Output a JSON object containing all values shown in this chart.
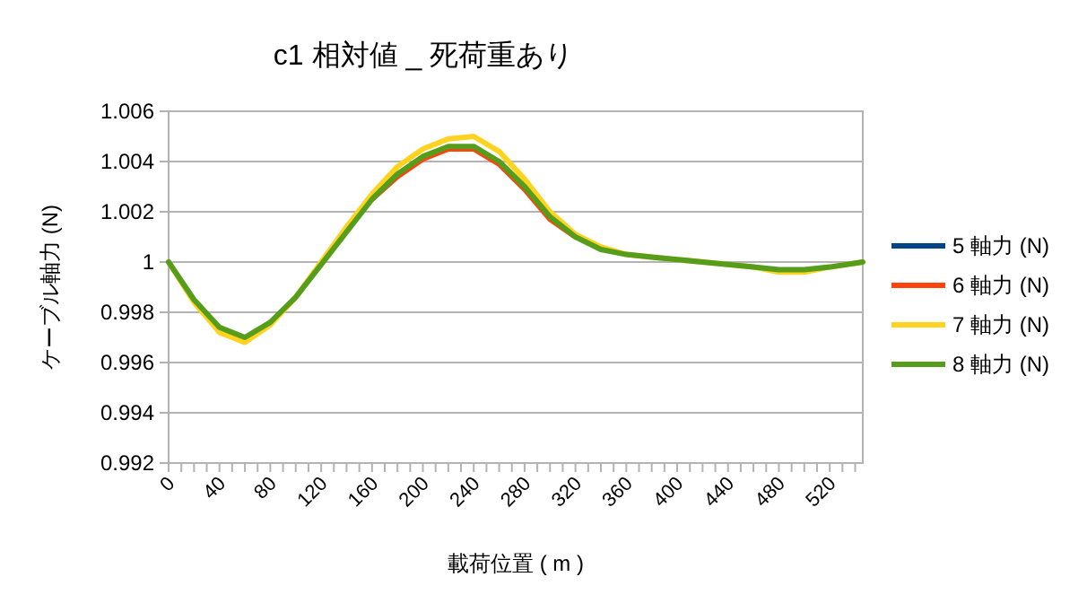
{
  "chart_data": {
    "type": "line",
    "title": "c1  相対値 _ 死荷重あり",
    "xlabel": "載荷位置 ( m )",
    "ylabel": "ケーブル軸力 (N)",
    "x": [
      0,
      20,
      40,
      60,
      80,
      100,
      120,
      140,
      160,
      180,
      200,
      220,
      240,
      260,
      280,
      300,
      320,
      340,
      360,
      380,
      400,
      420,
      440,
      460,
      480,
      500,
      520,
      546
    ],
    "series": [
      {
        "name": "5  軸力 (N)",
        "color": "#004586",
        "values": [
          null,
          null,
          null,
          null,
          null,
          null,
          null,
          null,
          null,
          null,
          null,
          null,
          null,
          null,
          null,
          null,
          null,
          null,
          null,
          null,
          null,
          null,
          null,
          null,
          null,
          null,
          null,
          null
        ]
      },
      {
        "name": "6  軸力 (N)",
        "color": "#ff420e",
        "values": [
          null,
          null,
          null,
          null,
          null,
          null,
          null,
          null,
          1.0025,
          1.0034,
          1.0041,
          1.0045,
          1.0045,
          1.0039,
          1.0029,
          1.0017,
          1.001,
          null,
          null,
          null,
          null,
          null,
          null,
          null,
          null,
          null,
          null,
          null
        ]
      },
      {
        "name": "7  軸力 (N)",
        "color": "#ffd320",
        "values": [
          1.0,
          0.9984,
          0.9972,
          0.9968,
          0.9975,
          0.9986,
          1.0,
          1.0014,
          1.0027,
          1.0038,
          1.0045,
          1.0049,
          1.005,
          1.0044,
          1.0033,
          1.002,
          1.0011,
          1.0006,
          1.0003,
          1.0002,
          1.0001,
          1.0,
          0.9999,
          0.9998,
          0.9996,
          0.9996,
          0.9998,
          1.0
        ]
      },
      {
        "name": "8  軸力 (N)",
        "color": "#579d1c",
        "values": [
          1.0,
          0.9985,
          0.9974,
          0.997,
          0.9976,
          0.9986,
          0.9999,
          1.0012,
          1.0025,
          1.0035,
          1.0042,
          1.0046,
          1.0046,
          1.004,
          1.003,
          1.0018,
          1.001,
          1.0005,
          1.0003,
          1.0002,
          1.0001,
          1.0,
          0.9999,
          0.9998,
          0.9997,
          0.9997,
          0.9998,
          1.0
        ]
      }
    ],
    "xlim": [
      0,
      546
    ],
    "ylim": [
      0.992,
      1.006
    ],
    "xticks": [
      0,
      {
        "value": 10,
        "label": null
      },
      {
        "value": 20,
        "label": null
      },
      {
        "value": 30,
        "label": null
      },
      40,
      {
        "value": 50,
        "label": null
      },
      {
        "value": 60,
        "label": null
      },
      {
        "value": 70,
        "label": null
      },
      80,
      {
        "value": 90,
        "label": null
      },
      {
        "value": 100,
        "label": null
      },
      {
        "value": 110,
        "label": null
      },
      120,
      {
        "value": 130,
        "label": null
      },
      {
        "value": 140,
        "label": null
      },
      {
        "value": 150,
        "label": null
      },
      160,
      {
        "value": 170,
        "label": null
      },
      {
        "value": 180,
        "label": null
      },
      {
        "value": 190,
        "label": null
      },
      200,
      {
        "value": 210,
        "label": null
      },
      {
        "value": 220,
        "label": null
      },
      {
        "value": 230,
        "label": null
      },
      240,
      {
        "value": 250,
        "label": null
      },
      {
        "value": 260,
        "label": null
      },
      {
        "value": 270,
        "label": null
      },
      280,
      {
        "value": 290,
        "label": null
      },
      {
        "value": 300,
        "label": null
      },
      {
        "value": 310,
        "label": null
      },
      320,
      {
        "value": 330,
        "label": null
      },
      {
        "value": 340,
        "label": null
      },
      {
        "value": 350,
        "label": null
      },
      360,
      {
        "value": 370,
        "label": null
      },
      {
        "value": 380,
        "label": null
      },
      {
        "value": 390,
        "label": null
      },
      400,
      {
        "value": 410,
        "label": null
      },
      {
        "value": 420,
        "label": null
      },
      {
        "value": 430,
        "label": null
      },
      440,
      {
        "value": 450,
        "label": null
      },
      {
        "value": 460,
        "label": null
      },
      {
        "value": 470,
        "label": null
      },
      480,
      {
        "value": 490,
        "label": null
      },
      {
        "value": 500,
        "label": null
      },
      {
        "value": 510,
        "label": null
      },
      520,
      {
        "value": 530,
        "label": null
      },
      {
        "value": 540,
        "label": null
      }
    ],
    "yticks": [
      0.992,
      0.994,
      0.996,
      0.998,
      1,
      1.002,
      1.004,
      1.006
    ],
    "grid": "y",
    "legend": "right",
    "marker": "none",
    "line_style": "solid"
  }
}
